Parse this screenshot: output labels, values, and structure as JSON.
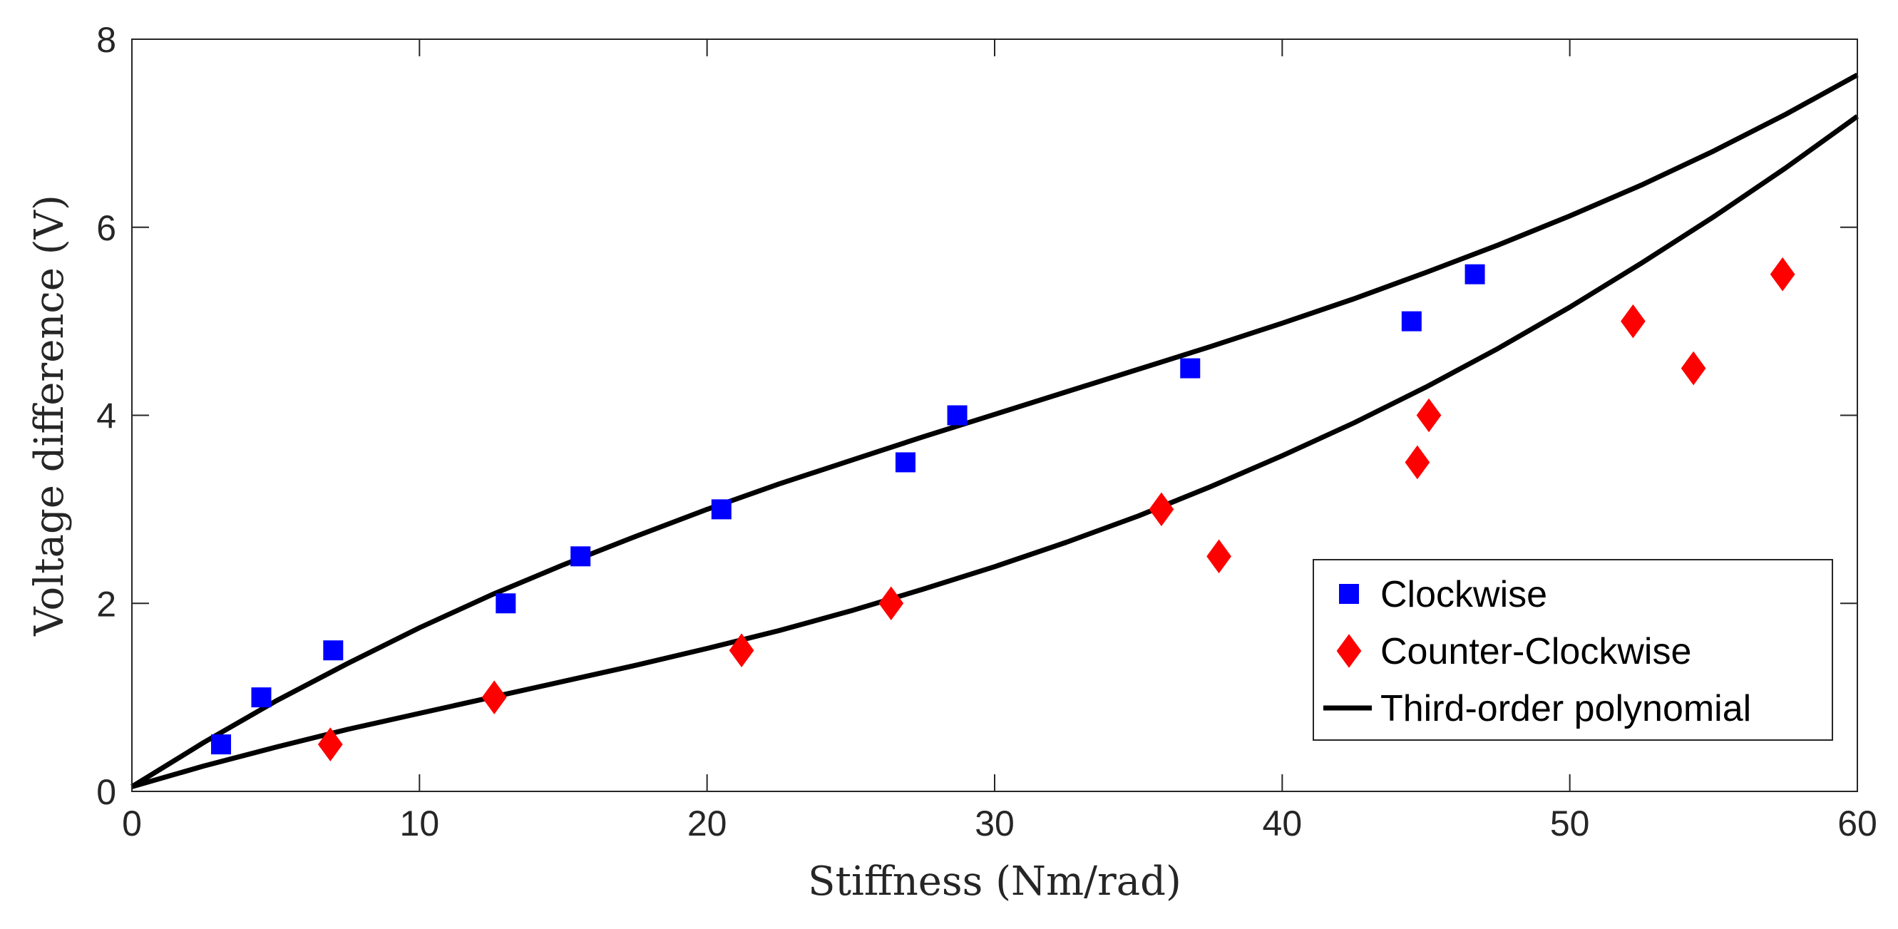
{
  "chart_data": {
    "type": "scatter",
    "title": "",
    "xlabel": "Stiffness (Nm/rad)",
    "ylabel": "Voltage difference (V)",
    "xlim": [
      0,
      60
    ],
    "ylim": [
      0,
      8
    ],
    "xticks": [
      0,
      10,
      20,
      30,
      40,
      50,
      60
    ],
    "yticks": [
      0,
      2,
      4,
      6,
      8
    ],
    "grid": false,
    "legend_position": "bottom-right",
    "series": [
      {
        "name": "Clockwise",
        "marker": "square",
        "color": "#0000ff",
        "x": [
          3.1,
          4.5,
          7.0,
          13.0,
          15.6,
          20.5,
          26.9,
          28.7,
          36.8,
          44.5,
          46.7
        ],
        "y": [
          0.5,
          1.0,
          1.5,
          2.0,
          2.5,
          3.0,
          3.5,
          4.0,
          4.5,
          5.0,
          5.5
        ]
      },
      {
        "name": "Counter-Clockwise",
        "marker": "diamond",
        "color": "#ff0000",
        "x": [
          6.9,
          12.6,
          21.2,
          26.4,
          35.8,
          37.8,
          44.7,
          45.1,
          52.2,
          54.3,
          57.4
        ],
        "y": [
          0.5,
          1.0,
          1.5,
          2.0,
          3.0,
          2.5,
          3.5,
          4.0,
          5.0,
          4.5,
          5.5
        ]
      },
      {
        "name": "Third-order polynomial",
        "marker": "line",
        "color": "#000000",
        "curves": [
          {
            "x": [
              0,
              2.5,
              5,
              7.5,
              10,
              12.5,
              15,
              17.5,
              20,
              22.5,
              25,
              27.5,
              30,
              32.5,
              35,
              37.5,
              40,
              42.5,
              45,
              47.5,
              50,
              52.5,
              55,
              57.5,
              60
            ],
            "y": [
              0.05,
              0.52,
              0.96,
              1.36,
              1.74,
              2.09,
              2.41,
              2.71,
              3.0,
              3.27,
              3.52,
              3.77,
              4.01,
              4.25,
              4.49,
              4.73,
              4.98,
              5.24,
              5.52,
              5.81,
              6.12,
              6.45,
              6.81,
              7.2,
              7.62
            ]
          },
          {
            "x": [
              0,
              2.5,
              5,
              7.5,
              10,
              12.5,
              15,
              17.5,
              20,
              22.5,
              25,
              27.5,
              30,
              32.5,
              35,
              37.5,
              40,
              42.5,
              45,
              47.5,
              50,
              52.5,
              55,
              57.5,
              60
            ],
            "y": [
              0.05,
              0.27,
              0.47,
              0.66,
              0.83,
              1.0,
              1.17,
              1.34,
              1.52,
              1.71,
              1.92,
              2.15,
              2.39,
              2.65,
              2.93,
              3.24,
              3.57,
              3.92,
              4.3,
              4.71,
              5.15,
              5.62,
              6.11,
              6.63,
              7.18
            ]
          }
        ]
      }
    ]
  }
}
